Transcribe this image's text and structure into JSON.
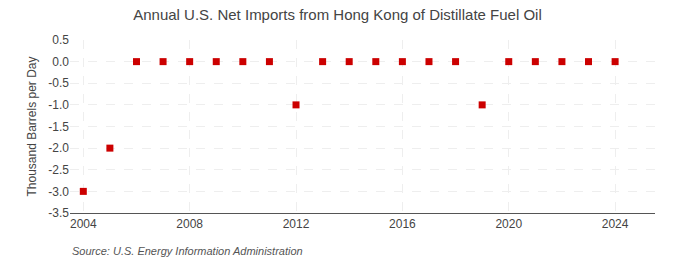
{
  "chart_data": {
    "type": "scatter",
    "title": "Annual U.S. Net Imports from Hong Kong of Distillate Fuel Oil",
    "ylabel": "Thousand Barrels per Day",
    "annotations": [
      "Source: U.S. Energy Information Administration"
    ],
    "x": [
      2004,
      2005,
      2006,
      2007,
      2008,
      2009,
      2010,
      2011,
      2012,
      2013,
      2014,
      2015,
      2016,
      2017,
      2018,
      2019,
      2020,
      2021,
      2022,
      2023,
      2024
    ],
    "values": [
      -3.0,
      -2.0,
      0.0,
      0.0,
      0.0,
      0.0,
      0.0,
      0.0,
      -1.0,
      0.0,
      0.0,
      0.0,
      0.0,
      0.0,
      0.0,
      -1.0,
      0.0,
      0.0,
      0.0,
      0.0,
      0.0
    ],
    "color": "#cc0000",
    "marker": "square",
    "xlim": [
      2003.5,
      2025.5
    ],
    "xticks": [
      2004,
      2008,
      2012,
      2016,
      2020,
      2024
    ],
    "ylim": [
      -3.5,
      0.5
    ],
    "yticks": [
      0.5,
      {
        "value": 0,
        "label": "0.0"
      },
      -0.5,
      {
        "value": -1,
        "label": "-1.0"
      },
      -1.5,
      {
        "value": -2,
        "label": "-2.0"
      },
      -2.5,
      {
        "value": -3,
        "label": "-3.0"
      },
      -3.5
    ],
    "grid": true
  }
}
